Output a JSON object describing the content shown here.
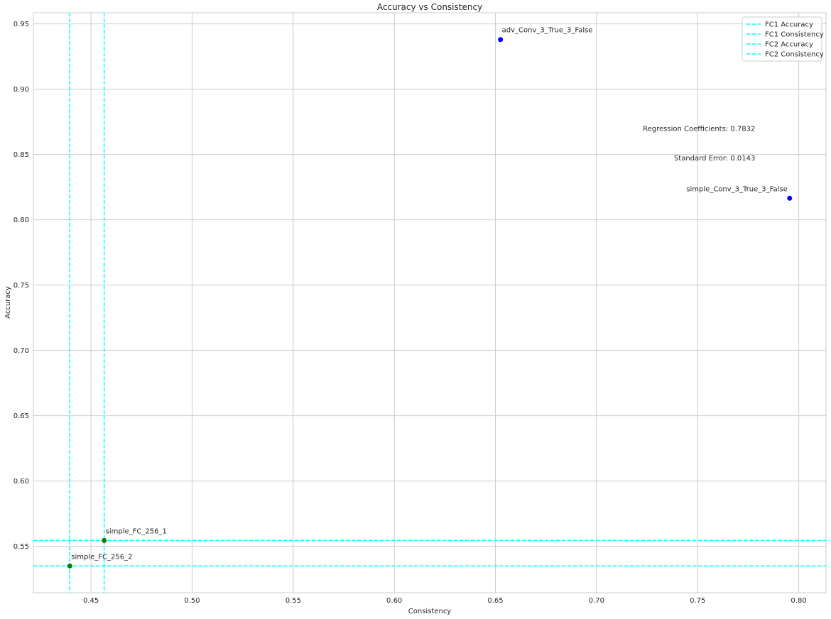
{
  "chart_data": {
    "type": "scatter",
    "title": "Accuracy vs Consistency",
    "xlabel": "Consistency",
    "ylabel": "Accuracy",
    "xlim": [
      0.4215,
      0.8135
    ],
    "ylim": [
      0.5145,
      0.9585
    ],
    "x_ticks": [
      0.45,
      0.5,
      0.55,
      0.6,
      0.65,
      0.7,
      0.75,
      0.8
    ],
    "y_ticks": [
      0.55,
      0.6,
      0.65,
      0.7,
      0.75,
      0.8,
      0.85,
      0.9,
      0.95
    ],
    "grid": true,
    "points": [
      {
        "label": "adv_Conv_3_True_3_False",
        "x": 0.6525,
        "y": 0.938,
        "color": "#0000ff"
      },
      {
        "label": "simple_Conv_3_True_3_False",
        "x": 0.7955,
        "y": 0.8165,
        "color": "#0000ff"
      },
      {
        "label": "simple_FC_256_1",
        "x": 0.4565,
        "y": 0.5545,
        "color": "#008000"
      },
      {
        "label": "simple_FC_256_2",
        "x": 0.4395,
        "y": 0.535,
        "color": "#008000"
      }
    ],
    "reference_lines": [
      {
        "name": "FC1 Accuracy",
        "orientation": "horizontal",
        "value": 0.5545,
        "color": "#00ffff"
      },
      {
        "name": "FC1 Consistency",
        "orientation": "vertical",
        "value": 0.4565,
        "color": "#00ffff"
      },
      {
        "name": "FC2 Accuracy",
        "orientation": "horizontal",
        "value": 0.535,
        "color": "#00ffff"
      },
      {
        "name": "FC2 Consistency",
        "orientation": "vertical",
        "value": 0.4395,
        "color": "#00ffff"
      }
    ],
    "legend_position": "top-right",
    "annotations": [
      {
        "text": "Regression Coefficients: 0.7832",
        "x": 0.7785,
        "y": 0.87
      },
      {
        "text": "Standard Error: 0.0143",
        "x": 0.7785,
        "y": 0.8475
      }
    ]
  }
}
